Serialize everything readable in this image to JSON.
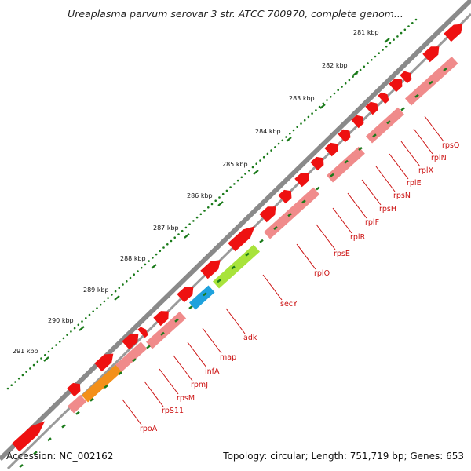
{
  "title": "Ureaplasma parvum serovar 3 str. ATCC 700970, complete genom...",
  "footer": {
    "accession": "Accession: NC_002162",
    "topology": "Topology: circular; Length: 751,719 bp; Genes: 653"
  },
  "ruler_labels": [
    "281 kbp",
    "282 kbp",
    "283 kbp",
    "284 kbp",
    "285 kbp",
    "286 kbp",
    "287 kbp",
    "288 kbp",
    "289 kbp",
    "290 kbp",
    "291 kbp"
  ],
  "gene_labels": [
    "rpsQ",
    "rplN",
    "rplX",
    "rplE",
    "rpsN",
    "rpsH",
    "rplF",
    "rplR",
    "rpsE",
    "rplO",
    "secY",
    "adk",
    "map",
    "infA",
    "rpmJ",
    "rpsM",
    "rpS11",
    "rpoA"
  ],
  "colors": {
    "cds": "#ee1111",
    "gene": "#f08b8b",
    "secY": "#a8e33b",
    "adk": "#1fa2dd",
    "rpoA": "#f3901a",
    "label": "#cc1111",
    "ruler_tick": "#1a7a1a",
    "backbone": "#808080"
  },
  "icons": [
    "rightward-arrow-gene-icon"
  ]
}
